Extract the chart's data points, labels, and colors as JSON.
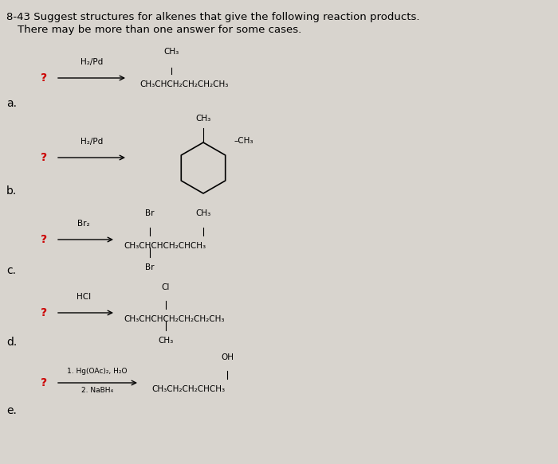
{
  "title_line1": "8-43 Suggest structures for alkenes that give the following reaction products.",
  "title_line2": "There may be more than one answer for some cases.",
  "bg_color": "#d8d4ce",
  "text_color": "#000000",
  "label_color": "#cc0000",
  "reactions": [
    {
      "label": "a.",
      "question_mark": "?",
      "reagent": "H₂/Pd",
      "product_lines": [
        "CH₃",
        "CH₃CHCH₂CH₂CH₂CH₃"
      ],
      "product_superscript": "CH₃",
      "type": "linear_a"
    },
    {
      "label": "b.",
      "question_mark": "?",
      "reagent": "H₂/Pd",
      "type": "cyclohexane",
      "substituents": [
        "CH₃",
        "CH₃"
      ]
    },
    {
      "label": "c.",
      "question_mark": "?",
      "reagent": "Br₂",
      "type": "linear_c"
    },
    {
      "label": "d.",
      "question_mark": "?",
      "reagent": "HCl",
      "type": "linear_d"
    },
    {
      "label": "e.",
      "question_mark": "?",
      "reagent": "1. Hg(OAc)₂, H₂O\n2. NaBH₄",
      "type": "linear_e"
    }
  ]
}
